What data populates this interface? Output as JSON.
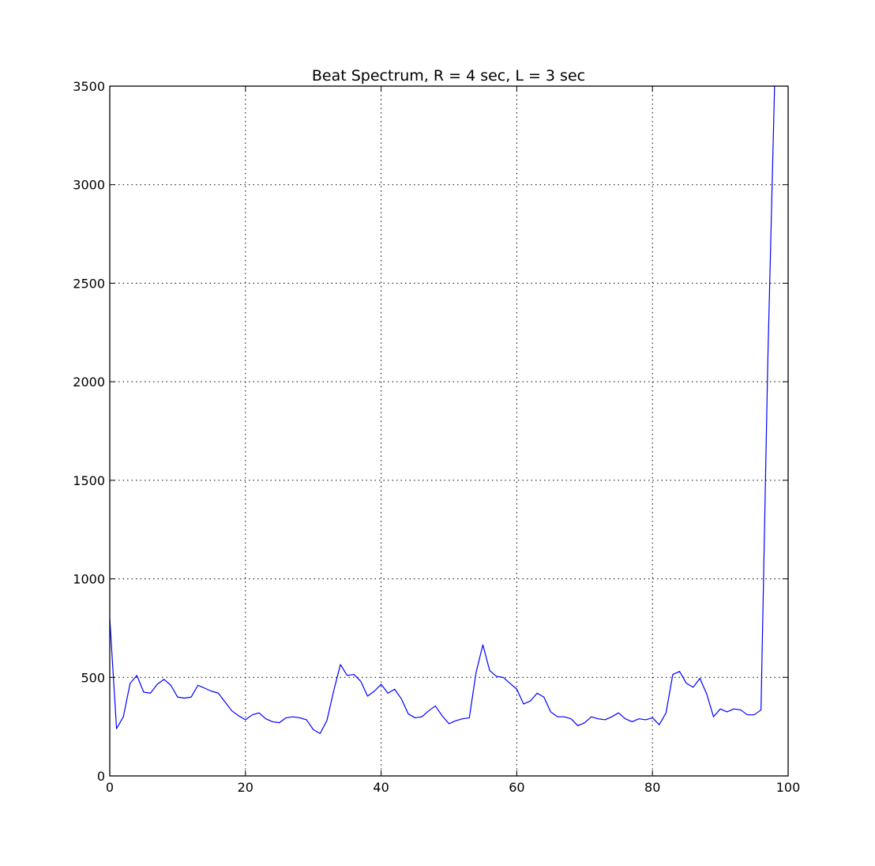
{
  "chart_data": {
    "type": "line",
    "title": "Beat Spectrum, R = 4 sec, L = 3 sec",
    "xlabel": "",
    "ylabel": "",
    "xlim": [
      0,
      100
    ],
    "ylim": [
      0,
      3500
    ],
    "xticks": [
      0,
      20,
      40,
      60,
      80,
      100
    ],
    "yticks": [
      0,
      500,
      1000,
      1500,
      2000,
      2500,
      3000,
      3500
    ],
    "grid": true,
    "grid_style": "dotted",
    "line_color": "#0000ff",
    "series": [
      {
        "x": [
          0,
          1,
          2,
          3,
          4,
          5,
          6,
          7,
          8,
          9,
          10,
          11,
          12,
          13,
          14,
          15,
          16,
          17,
          18,
          19,
          20,
          21,
          22,
          23,
          24,
          25,
          26,
          27,
          28,
          29,
          30,
          31,
          32,
          33,
          34,
          35,
          36,
          37,
          38,
          39,
          40,
          41,
          42,
          43,
          44,
          45,
          46,
          47,
          48,
          49,
          50,
          51,
          52,
          53,
          54,
          55,
          56,
          57,
          58,
          59,
          60,
          61,
          62,
          63,
          64,
          65,
          66,
          67,
          68,
          69,
          70,
          71,
          72,
          73,
          74,
          75,
          76,
          77,
          78,
          79,
          80,
          81,
          82,
          83,
          84,
          85,
          86,
          87,
          88,
          89,
          90,
          91,
          92,
          93,
          94,
          95,
          96,
          97,
          98
        ],
        "y": [
          800,
          240,
          300,
          470,
          510,
          425,
          420,
          465,
          490,
          460,
          400,
          395,
          400,
          460,
          445,
          430,
          420,
          375,
          330,
          305,
          285,
          310,
          320,
          290,
          275,
          270,
          295,
          300,
          295,
          285,
          235,
          215,
          280,
          430,
          565,
          510,
          515,
          480,
          405,
          430,
          465,
          420,
          440,
          390,
          315,
          295,
          300,
          330,
          355,
          305,
          265,
          280,
          290,
          295,
          525,
          665,
          535,
          505,
          500,
          470,
          440,
          365,
          380,
          420,
          400,
          325,
          300,
          300,
          290,
          255,
          270,
          300,
          290,
          285,
          300,
          320,
          290,
          275,
          290,
          285,
          295,
          260,
          320,
          515,
          530,
          470,
          450,
          495,
          415,
          300,
          340,
          325,
          340,
          335,
          310,
          310,
          335,
          2100,
          3500
        ]
      }
    ]
  }
}
